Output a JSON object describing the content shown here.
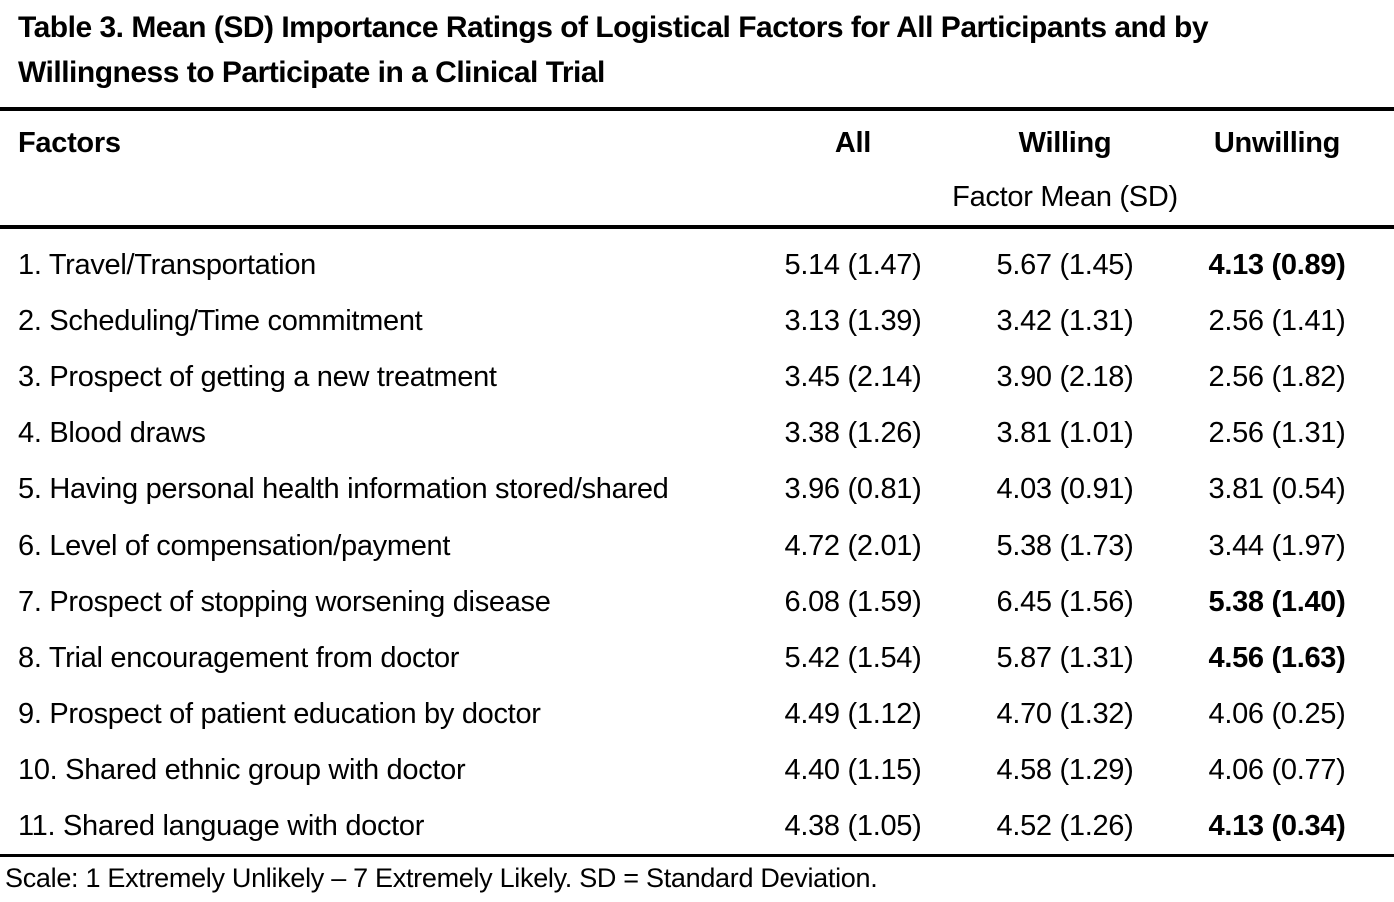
{
  "page": {
    "title": "Table 3. Mean (SD) Importance Ratings of Logistical Factors for All Participants and by\nWillingness to Participate in a Clinical Trial",
    "footnote": "Scale: 1 Extremely Unlikely – 7 Extremely Likely. SD = Standard Deviation."
  },
  "table": {
    "columns": [
      "Factors",
      "All",
      "Willing",
      "Unwilling"
    ],
    "subheader": "Factor Mean (SD)",
    "rows": [
      {
        "factor": "1. Travel/Transportation",
        "all": "5.14 (1.47)",
        "willing": "5.67 (1.45)",
        "unwilling": "4.13 (0.89)",
        "unwilling_bold": true
      },
      {
        "factor": "2. Scheduling/Time commitment",
        "all": "3.13 (1.39)",
        "willing": "3.42 (1.31)",
        "unwilling": "2.56 (1.41)",
        "unwilling_bold": false
      },
      {
        "factor": "3. Prospect of getting a new treatment",
        "all": "3.45 (2.14)",
        "willing": "3.90 (2.18)",
        "unwilling": "2.56 (1.82)",
        "unwilling_bold": false
      },
      {
        "factor": "4. Blood draws",
        "all": "3.38 (1.26)",
        "willing": "3.81 (1.01)",
        "unwilling": "2.56 (1.31)",
        "unwilling_bold": false
      },
      {
        "factor": "5. Having personal health information stored/shared",
        "all": "3.96 (0.81)",
        "willing": "4.03 (0.91)",
        "unwilling": "3.81 (0.54)",
        "unwilling_bold": false
      },
      {
        "factor": "6. Level of compensation/payment",
        "all": "4.72 (2.01)",
        "willing": "5.38 (1.73)",
        "unwilling": "3.44 (1.97)",
        "unwilling_bold": false
      },
      {
        "factor": "7. Prospect of stopping worsening disease",
        "all": "6.08 (1.59)",
        "willing": "6.45 (1.56)",
        "unwilling": "5.38 (1.40)",
        "unwilling_bold": true
      },
      {
        "factor": "8. Trial encouragement from doctor",
        "all": "5.42 (1.54)",
        "willing": "5.87 (1.31)",
        "unwilling": "4.56 (1.63)",
        "unwilling_bold": true
      },
      {
        "factor": "9. Prospect of patient education by doctor",
        "all": "4.49 (1.12)",
        "willing": "4.70 (1.32)",
        "unwilling": "4.06 (0.25)",
        "unwilling_bold": false
      },
      {
        "factor": "10. Shared ethnic group with doctor",
        "all": "4.40 (1.15)",
        "willing": "4.58 (1.29)",
        "unwilling": "4.06 (0.77)",
        "unwilling_bold": false
      },
      {
        "factor": "11. Shared language with doctor",
        "all": "4.38 (1.05)",
        "willing": "4.52 (1.26)",
        "unwilling": "4.13 (0.34)",
        "unwilling_bold": true
      }
    ]
  },
  "colors": {
    "text": "#000000",
    "background": "#ffffff",
    "rule": "#000000"
  }
}
